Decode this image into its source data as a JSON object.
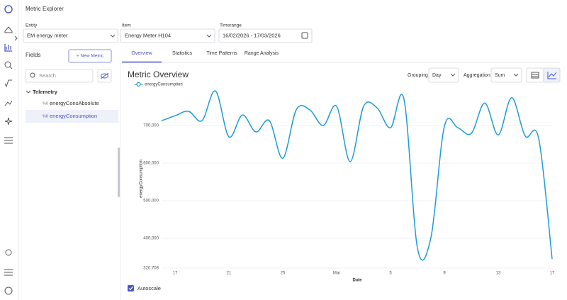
{
  "header": {
    "title": "Metric Explorer"
  },
  "filters": {
    "entity": {
      "label": "Entity",
      "value": "EM energy meter"
    },
    "item": {
      "label": "Item",
      "value": "Energy Meter H104"
    },
    "timerange": {
      "label": "Timerange",
      "value": "16/02/2026 - 17/03/2026"
    }
  },
  "fields": {
    "title": "Fields",
    "new_metric": "+ New Metric",
    "search_placeholder": "Search",
    "group": "Telemetry",
    "items": [
      "energyConsAbsolute",
      "energyConsumption"
    ]
  },
  "tabs": [
    "Overview",
    "Statistics",
    "Time Patterns",
    "Range Analysis"
  ],
  "panel": {
    "title": "Metric Overview",
    "grouping_label": "Grouping",
    "grouping": "Day",
    "aggregation_label": "Aggregation",
    "aggregation": "Sum",
    "autoscale": "Autoscale"
  },
  "chart_data": {
    "type": "line",
    "x_label": "Date",
    "y_label": "energyConsumption",
    "categories": [
      null,
      "17",
      null,
      null,
      null,
      "21",
      null,
      null,
      null,
      "25",
      null,
      null,
      null,
      "Mar",
      null,
      null,
      null,
      "5",
      null,
      null,
      null,
      "9",
      null,
      null,
      null,
      "13",
      null,
      null,
      null,
      "17"
    ],
    "series": [
      {
        "name": "energyConsumption",
        "color": "#1e9bd7",
        "values": [
          713000,
          726000,
          738000,
          713000,
          792000,
          670000,
          728000,
          683000,
          713000,
          613000,
          742000,
          742000,
          700000,
          751000,
          604000,
          751000,
          747000,
          694000,
          770000,
          374000,
          402000,
          698000,
          694000,
          679000,
          760000,
          675000,
          774000,
          672000,
          666000,
          345000
        ]
      }
    ],
    "ylim": [
      320708,
      800000
    ],
    "yticks": [
      {
        "value": 320708,
        "label": "320,708"
      },
      {
        "value": 400000,
        "label": "400,000"
      },
      {
        "value": 500000,
        "label": "500,000"
      },
      {
        "value": 600000,
        "label": "600,000"
      },
      {
        "value": 700000,
        "label": "700,000"
      }
    ],
    "grid": true
  }
}
